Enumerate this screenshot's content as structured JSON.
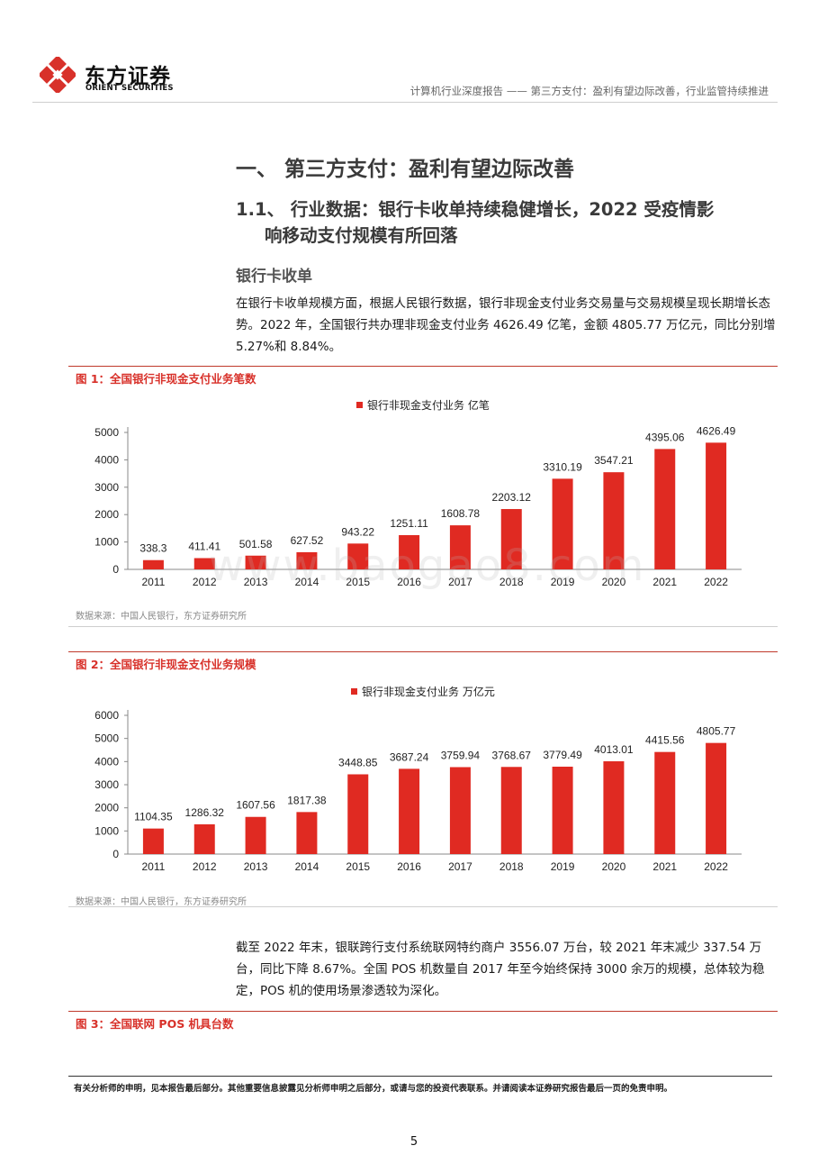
{
  "header": {
    "brand_cn": "东方证券",
    "brand_en": "ORIENT SECURITIES",
    "report_title": "计算机行业深度报告 —— 第三方支付：盈利有望边际改善，行业监管持续推进"
  },
  "section": {
    "h1": "一、  第三方支付：盈利有望边际改善",
    "h2_line1": "1.1、  行业数据：银行卡收单持续稳健增长，2022 受疫情影",
    "h2_line2": "响移动支付规模有所回落",
    "h3": "银行卡收单",
    "para1": "在银行卡收单规模方面，根据人民银行数据，银行非现金支付业务交易量与交易规模呈现长期增长态势。2022 年，全国银行共办理非现金支付业务 4626.49 亿笔，金额 4805.77 万亿元，同比分别增 5.27%和 8.84%。",
    "para2": "截至 2022 年末，银联跨行支付系统联网特约商户 3556.07 万台，较 2021 年末减少 337.54 万台，同比下降 8.67%。全国 POS 机数量自 2017 年至今始终保持 3000 余万的规模，总体较为稳定，POS 机的使用场景渗透较为深化。"
  },
  "figures": {
    "fig1_title": "图 1：全国银行非现金支付业务笔数",
    "fig2_title": "图 2：全国银行非现金支付业务规模",
    "fig3_title": "图 3：全国联网 POS 机具台数",
    "source1": "数据来源：中国人民银行，东方证券研究所",
    "source2": "数据来源：中国人民银行，东方证券研究所"
  },
  "chart_data": [
    {
      "type": "bar",
      "title": "",
      "legend": "银行非现金支付业务 亿笔",
      "categories": [
        "2011",
        "2012",
        "2013",
        "2014",
        "2015",
        "2016",
        "2017",
        "2018",
        "2019",
        "2020",
        "2021",
        "2022"
      ],
      "values": [
        338.3,
        411.41,
        501.58,
        627.52,
        943.22,
        1251.11,
        1608.78,
        2203.12,
        3310.19,
        3547.21,
        4395.06,
        4626.49
      ],
      "labels": [
        "338.3",
        "411.41",
        "501.58",
        "627.52",
        "943.22",
        "1251.11",
        "1608.78",
        "2203.12",
        "3310.19",
        "3547.21",
        "4395.06",
        "4626.49"
      ],
      "yticks": [
        0,
        1000,
        2000,
        3000,
        4000,
        5000
      ],
      "ylim": [
        0,
        5000
      ],
      "color": "#e02a22",
      "grid": false
    },
    {
      "type": "bar",
      "title": "",
      "legend": "银行非现金支付业务 万亿元",
      "categories": [
        "2011",
        "2012",
        "2013",
        "2014",
        "2015",
        "2016",
        "2017",
        "2018",
        "2019",
        "2020",
        "2021",
        "2022"
      ],
      "values": [
        1104.35,
        1286.32,
        1607.56,
        1817.38,
        3448.85,
        3687.24,
        3759.94,
        3768.67,
        3779.49,
        4013.01,
        4415.56,
        4805.77
      ],
      "labels": [
        "1104.35",
        "1286.32",
        "1607.56",
        "1817.38",
        "3448.85",
        "3687.24",
        "3759.94",
        "3768.67",
        "3779.49",
        "4013.01",
        "4415.56",
        "4805.77"
      ],
      "yticks": [
        0,
        1000,
        2000,
        3000,
        4000,
        5000,
        6000
      ],
      "ylim": [
        0,
        6000
      ],
      "color": "#e02a22",
      "grid": false
    }
  ],
  "footer": {
    "disclaimer": "有关分析师的申明，见本报告最后部分。其他重要信息披露见分析师申明之后部分，或请与您的投资代表联系。并请阅读本证券研究报告最后一页的免责申明。",
    "page_number": "5"
  },
  "watermark": "www.baogao8.com"
}
